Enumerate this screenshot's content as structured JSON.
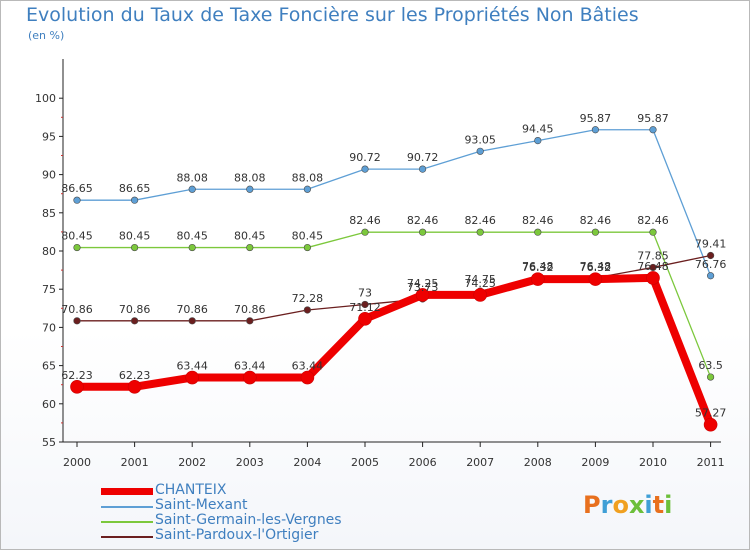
{
  "title": "Evolution du Taux de Taxe Foncière sur les Propriétés Non Bâties",
  "unit": "(en %)",
  "logo": {
    "text": [
      "P",
      "r",
      "o",
      "x",
      "i",
      "t",
      "i"
    ],
    "colors": [
      "#e8701e",
      "#3f9fd6",
      "#f0a020",
      "#6cbf3a",
      "#3f9fd6",
      "#e8701e",
      "#6cbf3a"
    ]
  },
  "chart_data": {
    "type": "line",
    "x": [
      "2000",
      "2001",
      "2002",
      "2003",
      "2004",
      "2005",
      "2006",
      "2007",
      "2008",
      "2009",
      "2010",
      "2011"
    ],
    "ylim": [
      55,
      100
    ],
    "yticks": [
      "55",
      "60",
      "65",
      "70",
      "75",
      "80",
      "85",
      "90",
      "95",
      "100"
    ],
    "grid": false,
    "legend_position": "bottom",
    "series": [
      {
        "name": "Saint-Mexant",
        "color": "#5e9fd5",
        "values": [
          86.65,
          86.65,
          88.08,
          88.08,
          88.08,
          90.72,
          90.72,
          93.05,
          94.45,
          95.87,
          95.87,
          76.76
        ],
        "labels": [
          "86.65",
          "86.65",
          "88.08",
          "88.08",
          "88.08",
          "90.72",
          "90.72",
          "93.05",
          "94.45",
          "95.87",
          "95.87",
          "76.76"
        ]
      },
      {
        "name": "Saint-Germain-les-Vergnes",
        "color": "#7cc83c",
        "values": [
          80.45,
          80.45,
          80.45,
          80.45,
          80.45,
          82.46,
          82.46,
          82.46,
          82.46,
          82.46,
          82.46,
          63.5
        ],
        "labels": [
          "80.45",
          "80.45",
          "80.45",
          "80.45",
          "80.45",
          "82.46",
          "82.46",
          "82.46",
          "82.46",
          "82.46",
          "82.46",
          "63.5"
        ]
      },
      {
        "name": "Saint-Pardoux-l'Ortigier",
        "color": "#6b1f1f",
        "values": [
          70.86,
          70.86,
          70.86,
          70.86,
          72.28,
          73,
          73.73,
          74.75,
          76.48,
          76.48,
          77.85,
          79.41
        ],
        "labels": [
          "70.86",
          "70.86",
          "70.86",
          "70.86",
          "72.28",
          "73",
          "73.73",
          "74.75",
          "76.48",
          "76.48",
          "77.85",
          "79.41"
        ]
      },
      {
        "name": "CHANTEIX",
        "color": "#ee0000",
        "values": [
          62.23,
          62.23,
          63.44,
          63.44,
          63.44,
          71.12,
          74.25,
          74.25,
          76.32,
          76.32,
          76.48,
          57.27
        ],
        "labels": [
          "62.23",
          "62.23",
          "63.44",
          "63.44",
          "63.44",
          "71.12",
          "74.25",
          "74.25",
          "76.32",
          "76.32",
          "76.48",
          "57.27"
        ]
      }
    ]
  }
}
